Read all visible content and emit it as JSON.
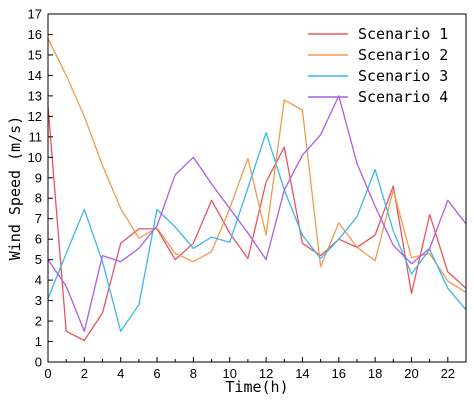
{
  "chart_data": {
    "type": "line",
    "xlabel": "Time(h)",
    "ylabel": "Wind Speed (m/s)",
    "xlim": [
      0,
      23
    ],
    "ylim": [
      0,
      17
    ],
    "xticks": [
      0,
      2,
      4,
      6,
      8,
      10,
      12,
      14,
      16,
      18,
      20,
      22
    ],
    "yticks": [
      0,
      1,
      2,
      3,
      4,
      5,
      6,
      7,
      8,
      9,
      10,
      11,
      12,
      13,
      14,
      15,
      16,
      17
    ],
    "grid": false,
    "legend_position": "top-right",
    "x": [
      0,
      1,
      2,
      3,
      4,
      5,
      6,
      7,
      8,
      9,
      10,
      11,
      12,
      13,
      14,
      15,
      16,
      17,
      18,
      19,
      20,
      21,
      22,
      23
    ],
    "series": [
      {
        "name": "Scenario 1",
        "color": "#e8555a",
        "values": [
          12.5,
          1.5,
          1.05,
          2.4,
          5.8,
          6.5,
          6.5,
          5.0,
          5.8,
          7.9,
          6.3,
          5.05,
          8.8,
          10.5,
          5.8,
          5.2,
          6.0,
          5.6,
          6.2,
          8.6,
          3.35,
          7.2,
          4.4,
          3.6
        ]
      },
      {
        "name": "Scenario 2",
        "color": "#f29b4e",
        "values": [
          15.8,
          14.0,
          12.0,
          9.6,
          7.5,
          6.05,
          6.55,
          5.3,
          4.9,
          5.4,
          7.5,
          9.95,
          6.2,
          12.8,
          12.3,
          4.65,
          6.8,
          5.6,
          4.95,
          8.4,
          5.1,
          5.3,
          3.95,
          3.4
        ]
      },
      {
        "name": "Scenario 3",
        "color": "#3db8e9",
        "values": [
          3.1,
          5.3,
          7.45,
          4.9,
          1.5,
          2.8,
          7.45,
          6.6,
          5.55,
          6.1,
          5.85,
          8.5,
          11.2,
          8.4,
          6.2,
          5.05,
          6.0,
          7.1,
          9.4,
          6.4,
          4.3,
          5.5,
          3.6,
          2.55
        ]
      },
      {
        "name": "Scenario 4",
        "color": "#a95fe3",
        "values": [
          5.0,
          3.7,
          1.5,
          5.2,
          4.9,
          5.55,
          6.65,
          9.15,
          10.0,
          8.7,
          7.5,
          6.3,
          5.0,
          8.4,
          10.1,
          11.1,
          13.0,
          9.7,
          7.6,
          5.7,
          4.8,
          5.55,
          7.9,
          6.75
        ]
      }
    ]
  }
}
